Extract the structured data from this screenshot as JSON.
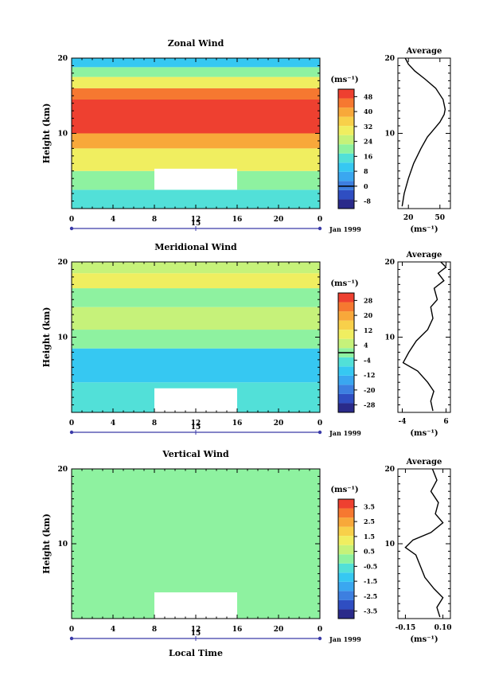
{
  "chart_data": [
    {
      "type": "heatmap",
      "title": "Zonal Wind",
      "ylabel": "Height (km)",
      "ylim": [
        0,
        20
      ],
      "y_ticks": [
        "10",
        "20"
      ],
      "xlim": [
        0,
        24
      ],
      "x_ticks": [
        "0",
        "4",
        "8",
        "12",
        "16",
        "20",
        "0"
      ],
      "date_day": "15",
      "date_label": "Jan 1999",
      "missing_block": {
        "x": [
          8,
          16
        ],
        "y": [
          2.5,
          5.3
        ]
      },
      "colorbar": {
        "unit": "(ms⁻¹)",
        "ticks": [
          "48",
          "40",
          "32",
          "24",
          "16",
          "8",
          "0",
          "-8"
        ],
        "range": [
          -12,
          52
        ],
        "contour_line": 0,
        "colors": [
          "#2a2a8a",
          "#2f4ec2",
          "#3d7fe0",
          "#3aa7f0",
          "#36c8f2",
          "#52e0d8",
          "#8ef2a0",
          "#c6f27a",
          "#f0ee60",
          "#f8d04a",
          "#f8a83a",
          "#f67830",
          "#ee4030"
        ]
      },
      "bands": [
        {
          "y": [
            0,
            2.5
          ],
          "value": 16
        },
        {
          "y": [
            2.5,
            5
          ],
          "value": 20
        },
        {
          "y": [
            5,
            8
          ],
          "value": 32
        },
        {
          "y": [
            8,
            10
          ],
          "value": 40
        },
        {
          "y": [
            10,
            14.5
          ],
          "value": 50
        },
        {
          "y": [
            14.5,
            16
          ],
          "value": 44
        },
        {
          "y": [
            16,
            17.5
          ],
          "value": 28
        },
        {
          "y": [
            17.5,
            18.8
          ],
          "value": 18
        },
        {
          "y": [
            18.8,
            20
          ],
          "value": 10
        }
      ],
      "average": {
        "title": "Average",
        "xlabel": "(ms⁻¹)",
        "x_ticks": [
          "20",
          "50"
        ],
        "xlim": [
          10,
          60
        ],
        "ylim": [
          0,
          20
        ],
        "y_ticks": [
          "10",
          "20"
        ],
        "profile": [
          [
            14,
            0.3
          ],
          [
            16,
            2
          ],
          [
            20,
            4
          ],
          [
            25,
            6
          ],
          [
            32,
            8
          ],
          [
            38,
            9.5
          ],
          [
            44,
            10.5
          ],
          [
            50,
            11.5
          ],
          [
            54,
            12.5
          ],
          [
            55,
            13.2
          ],
          [
            53,
            14.5
          ],
          [
            46,
            16
          ],
          [
            36,
            17.2
          ],
          [
            26,
            18.3
          ],
          [
            20,
            19.2
          ],
          [
            17,
            20
          ]
        ]
      }
    },
    {
      "type": "heatmap",
      "title": "Meridional Wind",
      "ylabel": "Height (km)",
      "ylim": [
        0,
        20
      ],
      "y_ticks": [
        "10",
        "20"
      ],
      "xlim": [
        0,
        24
      ],
      "x_ticks": [
        "0",
        "4",
        "8",
        "12",
        "16",
        "20",
        "0"
      ],
      "date_day": "15",
      "date_label": "Jan 1999",
      "missing_block": {
        "x": [
          8,
          16
        ],
        "y": [
          0,
          3.2
        ]
      },
      "colorbar": {
        "unit": "(ms⁻¹)",
        "ticks": [
          "28",
          "20",
          "12",
          "4",
          "-4",
          "-12",
          "-20",
          "-28"
        ],
        "range": [
          -32,
          32
        ],
        "contour_line": 0,
        "colors": [
          "#2a2a8a",
          "#2f4ec2",
          "#3d7fe0",
          "#3aa7f0",
          "#36c8f2",
          "#52e0d8",
          "#8ef2a0",
          "#c6f27a",
          "#f0ee60",
          "#f8d04a",
          "#f8a83a",
          "#f67830",
          "#ee4030"
        ]
      },
      "bands": [
        {
          "y": [
            0,
            4
          ],
          "value": -4
        },
        {
          "y": [
            4,
            8.5
          ],
          "value": -10
        },
        {
          "y": [
            8.5,
            11
          ],
          "value": -2
        },
        {
          "y": [
            11,
            14
          ],
          "value": 6
        },
        {
          "y": [
            14,
            16.5
          ],
          "value": 2
        },
        {
          "y": [
            16.5,
            18.5
          ],
          "value": 8
        },
        {
          "y": [
            18.5,
            20
          ],
          "value": 4
        }
      ],
      "average": {
        "title": "Average",
        "xlabel": "(ms⁻¹)",
        "x_ticks": [
          "-4",
          "6"
        ],
        "xlim": [
          -5,
          7
        ],
        "ylim": [
          0,
          20
        ],
        "y_ticks": [
          "10",
          "20"
        ],
        "profile": [
          [
            3,
            0.2
          ],
          [
            2.5,
            1.5
          ],
          [
            3.2,
            2.8
          ],
          [
            1.8,
            4
          ],
          [
            -0.5,
            5.5
          ],
          [
            -3.8,
            6.6
          ],
          [
            -2.5,
            8
          ],
          [
            -0.8,
            9.5
          ],
          [
            1.8,
            11
          ],
          [
            3,
            12.5
          ],
          [
            2.5,
            14
          ],
          [
            4,
            15
          ],
          [
            3.3,
            16.5
          ],
          [
            5.5,
            17.5
          ],
          [
            4.2,
            18.5
          ],
          [
            6,
            19.3
          ],
          [
            4.8,
            20
          ]
        ]
      }
    },
    {
      "type": "heatmap",
      "title": "Vertical Wind",
      "xlabel": "Local Time",
      "ylabel": "Height (km)",
      "ylim": [
        0,
        20
      ],
      "y_ticks": [
        "10",
        "20"
      ],
      "xlim": [
        0,
        24
      ],
      "x_ticks": [
        "0",
        "4",
        "8",
        "12",
        "16",
        "20",
        "0"
      ],
      "date_day": "15",
      "date_label": "Jan 1999",
      "missing_block": {
        "x": [
          8,
          16
        ],
        "y": [
          0,
          3.5
        ]
      },
      "colorbar": {
        "unit": "(ms⁻¹)",
        "ticks": [
          "3.5",
          "2.5",
          "1.5",
          "0.5",
          "-0.5",
          "-1.5",
          "-2.5",
          "-3.5"
        ],
        "range": [
          -4,
          4
        ],
        "contour_line": null,
        "colors": [
          "#2a2a8a",
          "#2f4ec2",
          "#3d7fe0",
          "#3aa7f0",
          "#36c8f2",
          "#52e0d8",
          "#8ef2a0",
          "#c6f27a",
          "#f0ee60",
          "#f8d04a",
          "#f8a83a",
          "#f67830",
          "#ee4030"
        ]
      },
      "bands": [
        {
          "y": [
            0,
            20
          ],
          "value": 0
        }
      ],
      "average": {
        "title": "Average",
        "xlabel": "(ms⁻¹)",
        "x_ticks": [
          "-0.15",
          "0.10"
        ],
        "xlim": [
          -0.2,
          0.15
        ],
        "ylim": [
          0,
          20
        ],
        "y_ticks": [
          "10",
          "20"
        ],
        "profile": [
          [
            0.08,
            0.2
          ],
          [
            0.06,
            1.5
          ],
          [
            0.1,
            2.8
          ],
          [
            0.04,
            4
          ],
          [
            -0.02,
            5.5
          ],
          [
            -0.05,
            7
          ],
          [
            -0.08,
            8.5
          ],
          [
            -0.15,
            9.5
          ],
          [
            -0.1,
            10.5
          ],
          [
            0.02,
            11.5
          ],
          [
            0.1,
            12.8
          ],
          [
            0.05,
            14
          ],
          [
            0.07,
            15.5
          ],
          [
            0.02,
            17
          ],
          [
            0.06,
            18.5
          ],
          [
            0.03,
            20
          ]
        ]
      }
    }
  ]
}
